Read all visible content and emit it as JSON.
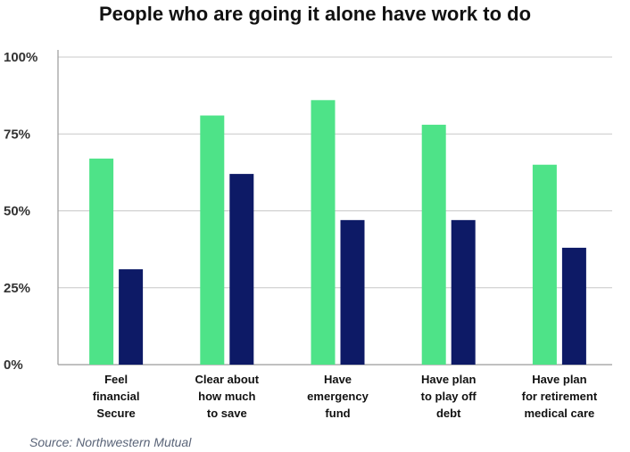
{
  "chart_data": {
    "type": "bar",
    "title": "People who are going it alone have work to do",
    "categories": [
      [
        "Feel",
        "financial",
        "Secure"
      ],
      [
        "Clear about",
        "how much",
        "to save"
      ],
      [
        "Have",
        "emergency",
        "fund"
      ],
      [
        "Have  plan",
        "to play off",
        "debt"
      ],
      [
        "Have  plan",
        "for retirement",
        "medical care"
      ]
    ],
    "series": [
      {
        "values": [
          67,
          81,
          86,
          78,
          65
        ],
        "color": "#4ee388"
      },
      {
        "values": [
          31,
          62,
          47,
          47,
          38
        ],
        "color": "#0d1a66"
      }
    ],
    "yticks": [
      "0%",
      "25%",
      "50%",
      "75%",
      "100%"
    ],
    "ylim": [
      0,
      100
    ],
    "grid": true,
    "xlabel": "",
    "ylabel": ""
  },
  "source": "Source: Northwestern Mutual"
}
